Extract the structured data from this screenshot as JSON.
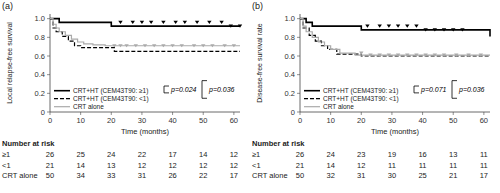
{
  "chart_data": [
    {
      "type": "step",
      "title": "(a)",
      "y_label": "Local relapse-free survival",
      "x_label": "Time (months)",
      "xlim": [
        0,
        62
      ],
      "ylim": [
        0,
        1.05
      ],
      "xticks": [
        0,
        10,
        20,
        30,
        40,
        50,
        60
      ],
      "yticks": [
        0,
        0.2,
        0.4,
        0.6,
        0.8,
        {
          "value": 1.0,
          "label": "1.0"
        }
      ],
      "grid": false,
      "legend": "lower left",
      "series": [
        {
          "name": "CRT+HT (CEM43T90: ≥1)",
          "color": "#000000",
          "line_style": "solid",
          "x": [
            0,
            3,
            20,
            62
          ],
          "values": [
            1.0,
            0.96,
            0.92,
            0.92
          ],
          "censor_x": [
            23,
            27,
            30,
            33,
            37,
            41,
            44,
            48,
            52,
            56,
            59,
            62
          ],
          "censor_values": [
            0.96,
            0.96,
            0.96,
            0.96,
            0.96,
            0.96,
            0.96,
            0.96,
            0.96,
            0.96,
            0.92,
            0.92
          ]
        },
        {
          "name": "CRT+HT (CEM43T90: <1)",
          "color": "#000000",
          "line_style": "dashed",
          "x": [
            0,
            1,
            2,
            4,
            6,
            8,
            10,
            21,
            62
          ],
          "values": [
            1.0,
            0.9,
            0.86,
            0.81,
            0.76,
            0.71,
            0.69,
            0.65,
            0.65
          ],
          "censor_x": [],
          "censor_values": []
        },
        {
          "name": "CRT alone",
          "color": "#aaaaaa",
          "line_style": "solid",
          "x": [
            0,
            1,
            2,
            3,
            5,
            7,
            9,
            11,
            14,
            18,
            62
          ],
          "values": [
            1.0,
            0.94,
            0.9,
            0.86,
            0.82,
            0.78,
            0.75,
            0.73,
            0.72,
            0.71,
            0.71
          ],
          "censor_x": [
            21,
            23,
            25,
            28,
            31,
            34,
            37,
            40,
            43,
            47,
            50,
            53,
            57,
            60
          ],
          "censor_values": [
            0.71,
            0.71,
            0.71,
            0.71,
            0.71,
            0.71,
            0.71,
            0.71,
            0.71,
            0.71,
            0.71,
            0.71,
            0.71,
            0.71
          ]
        }
      ],
      "annotations": [
        "p=0.024",
        "p=0.036"
      ],
      "at_risk": {
        "title": "Number at risk",
        "x": [
          0,
          10,
          20,
          30,
          40,
          50,
          60
        ],
        "rows": [
          {
            "name": "≥1",
            "values": [
              26,
              25,
              24,
              22,
              17,
              14,
              12
            ]
          },
          {
            "name": "<1",
            "values": [
              21,
              14,
              13,
              12,
              12,
              12,
              12
            ]
          },
          {
            "name": "CRT alone",
            "values": [
              50,
              34,
              33,
              31,
              26,
              22,
              17
            ]
          }
        ]
      }
    },
    {
      "type": "step",
      "title": "(b)",
      "y_label": "Disease-free survival rate",
      "x_label": "Time (months)",
      "xlim": [
        0,
        62
      ],
      "ylim": [
        0,
        1.05
      ],
      "xticks": [
        0,
        10,
        20,
        30,
        40,
        50,
        60
      ],
      "yticks": [
        0,
        0.2,
        0.4,
        0.6,
        0.8,
        {
          "value": 1.0,
          "label": "1.0"
        }
      ],
      "grid": false,
      "legend": "lower left",
      "series": [
        {
          "name": "CRT+HT (CEM43T90: ≥1)",
          "color": "#000000",
          "line_style": "solid",
          "x": [
            0,
            2,
            4,
            20,
            55,
            62
          ],
          "values": [
            1.0,
            0.96,
            0.92,
            0.88,
            0.88,
            0.81
          ],
          "censor_x": [
            22,
            26,
            29,
            32,
            35,
            38,
            41,
            44,
            47,
            50,
            53
          ],
          "censor_values": [
            0.92,
            0.92,
            0.92,
            0.92,
            0.92,
            0.92,
            0.88,
            0.88,
            0.88,
            0.88,
            0.88
          ]
        },
        {
          "name": "CRT+HT (CEM43T90: <1)",
          "color": "#000000",
          "line_style": "dashed",
          "x": [
            0,
            1,
            3,
            5,
            7,
            9,
            12,
            20,
            62
          ],
          "values": [
            1.0,
            0.9,
            0.82,
            0.76,
            0.71,
            0.67,
            0.62,
            0.6,
            0.6
          ],
          "censor_x": [],
          "censor_values": []
        },
        {
          "name": "CRT alone",
          "color": "#aaaaaa",
          "line_style": "solid",
          "x": [
            0,
            1,
            2,
            4,
            6,
            8,
            10,
            13,
            18,
            62
          ],
          "values": [
            1.0,
            0.92,
            0.86,
            0.8,
            0.75,
            0.71,
            0.67,
            0.63,
            0.61,
            0.61
          ],
          "censor_x": [
            20,
            23,
            26,
            29,
            32,
            35,
            38,
            41,
            44,
            47,
            51,
            55,
            59
          ],
          "censor_values": [
            0.63,
            0.61,
            0.61,
            0.61,
            0.61,
            0.61,
            0.61,
            0.61,
            0.61,
            0.61,
            0.61,
            0.61,
            0.61
          ]
        }
      ],
      "annotations": [
        "p=0.071",
        "p=0.036"
      ],
      "at_risk": {
        "title": "Number at risk",
        "x": [
          0,
          10,
          20,
          30,
          40,
          50,
          60
        ],
        "rows": [
          {
            "name": "≥1",
            "values": [
              26,
              24,
              23,
              19,
              16,
              13,
              11
            ]
          },
          {
            "name": "<1",
            "values": [
              21,
              14,
              12,
              11,
              11,
              11,
              11
            ]
          },
          {
            "name": "CRT alone",
            "values": [
              50,
              32,
              31,
              30,
              25,
              21,
              17
            ]
          }
        ]
      }
    }
  ]
}
